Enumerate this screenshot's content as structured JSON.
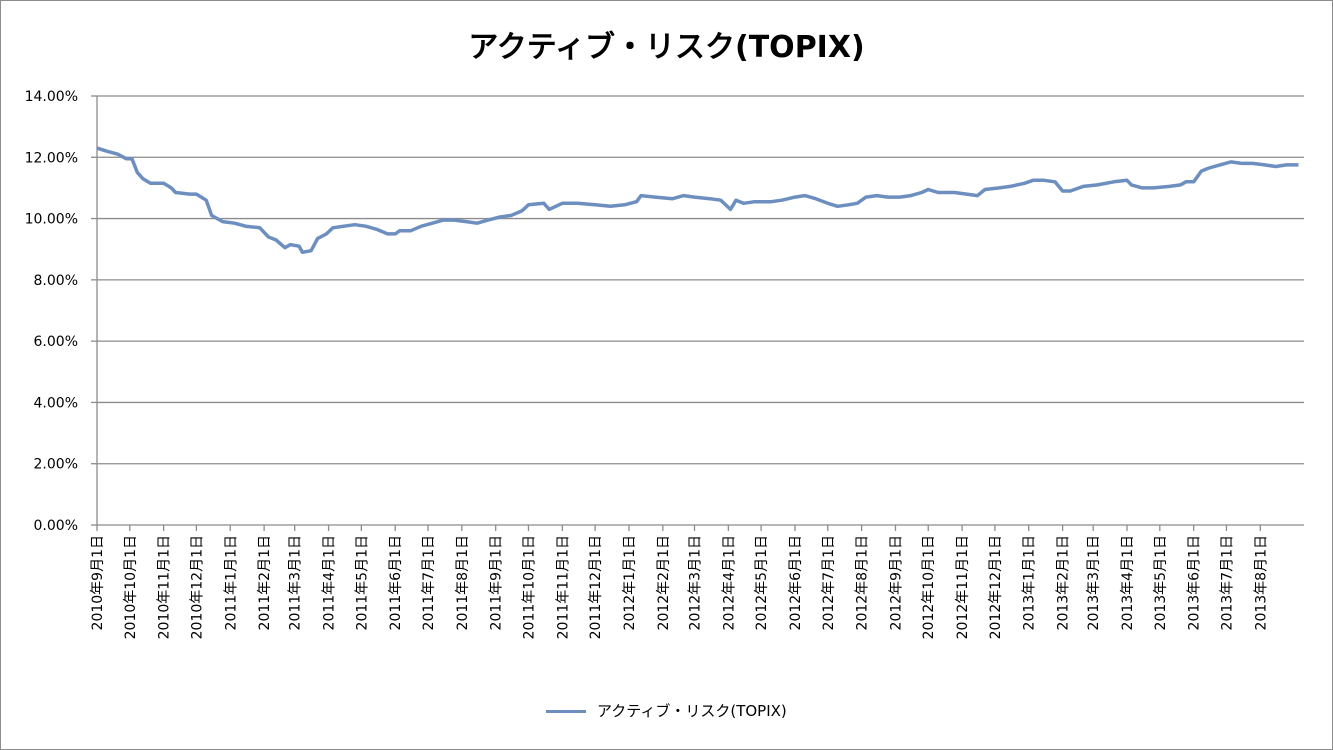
{
  "chart_data": {
    "type": "line",
    "title": "アクティブ・リスク(TOPIX)",
    "xlabel": "",
    "ylabel": "",
    "ylim": [
      0,
      0.14
    ],
    "y_ticks": [
      "0.00%",
      "2.00%",
      "4.00%",
      "6.00%",
      "8.00%",
      "10.00%",
      "12.00%",
      "14.00%"
    ],
    "x_ticks": [
      "2010年9月1日",
      "2010年10月1日",
      "2010年11月1日",
      "2010年12月1日",
      "2011年1月1日",
      "2011年2月1日",
      "2011年3月1日",
      "2011年4月1日",
      "2011年5月1日",
      "2011年6月1日",
      "2011年7月1日",
      "2011年8月1日",
      "2011年9月1日",
      "2011年10月1日",
      "2011年11月1日",
      "2011年12月1日",
      "2012年1月1日",
      "2012年2月1日",
      "2012年3月1日",
      "2012年4月1日",
      "2012年5月1日",
      "2012年6月1日",
      "2012年7月1日",
      "2012年8月1日",
      "2012年9月1日",
      "2012年10月1日",
      "2012年11月1日",
      "2012年12月1日",
      "2013年1月1日",
      "2013年2月1日",
      "2013年3月1日",
      "2013年4月1日",
      "2013年5月1日",
      "2013年6月1日",
      "2013年7月1日",
      "2013年8月1日"
    ],
    "grid": true,
    "legend_position": "bottom",
    "series": [
      {
        "name": "アクティブ・リスク(TOPIX)",
        "color": "#6d8fc0",
        "points": [
          [
            "2010-09-01",
            0.123
          ],
          [
            "2010-09-10",
            0.122
          ],
          [
            "2010-09-20",
            0.121
          ],
          [
            "2010-09-28",
            0.1195
          ],
          [
            "2010-10-03",
            0.1195
          ],
          [
            "2010-10-08",
            0.115
          ],
          [
            "2010-10-13",
            0.113
          ],
          [
            "2010-10-20",
            0.1115
          ],
          [
            "2010-11-01",
            0.1115
          ],
          [
            "2010-11-08",
            0.11
          ],
          [
            "2010-11-12",
            0.1085
          ],
          [
            "2010-11-25",
            0.108
          ],
          [
            "2010-12-01",
            0.108
          ],
          [
            "2010-12-10",
            0.106
          ],
          [
            "2010-12-15",
            0.101
          ],
          [
            "2010-12-25",
            0.099
          ],
          [
            "2011-01-05",
            0.0985
          ],
          [
            "2011-01-15",
            0.0975
          ],
          [
            "2011-01-28",
            0.097
          ],
          [
            "2011-02-05",
            0.094
          ],
          [
            "2011-02-12",
            0.093
          ],
          [
            "2011-02-20",
            0.0905
          ],
          [
            "2011-02-25",
            0.0915
          ],
          [
            "2011-03-05",
            0.091
          ],
          [
            "2011-03-08",
            0.089
          ],
          [
            "2011-03-16",
            0.0895
          ],
          [
            "2011-03-22",
            0.0935
          ],
          [
            "2011-03-30",
            0.095
          ],
          [
            "2011-04-05",
            0.097
          ],
          [
            "2011-04-15",
            0.0975
          ],
          [
            "2011-04-25",
            0.098
          ],
          [
            "2011-05-05",
            0.0975
          ],
          [
            "2011-05-15",
            0.0965
          ],
          [
            "2011-05-25",
            0.095
          ],
          [
            "2011-06-01",
            0.095
          ],
          [
            "2011-06-05",
            0.096
          ],
          [
            "2011-06-15",
            0.096
          ],
          [
            "2011-06-25",
            0.0975
          ],
          [
            "2011-07-05",
            0.0985
          ],
          [
            "2011-07-15",
            0.0995
          ],
          [
            "2011-07-25",
            0.0995
          ],
          [
            "2011-08-05",
            0.099
          ],
          [
            "2011-08-15",
            0.0985
          ],
          [
            "2011-08-25",
            0.0995
          ],
          [
            "2011-09-05",
            0.1005
          ],
          [
            "2011-09-15",
            0.101
          ],
          [
            "2011-09-25",
            0.1025
          ],
          [
            "2011-10-01",
            0.1045
          ],
          [
            "2011-10-15",
            0.105
          ],
          [
            "2011-10-20",
            0.103
          ],
          [
            "2011-11-01",
            0.105
          ],
          [
            "2011-11-15",
            0.105
          ],
          [
            "2011-12-01",
            0.1045
          ],
          [
            "2011-12-15",
            0.104
          ],
          [
            "2011-12-28",
            0.1045
          ],
          [
            "2012-01-08",
            0.1055
          ],
          [
            "2012-01-12",
            0.1075
          ],
          [
            "2012-01-25",
            0.107
          ],
          [
            "2012-02-10",
            0.1065
          ],
          [
            "2012-02-20",
            0.1075
          ],
          [
            "2012-03-01",
            0.107
          ],
          [
            "2012-03-15",
            0.1065
          ],
          [
            "2012-03-25",
            0.106
          ],
          [
            "2012-04-03",
            0.103
          ],
          [
            "2012-04-08",
            0.106
          ],
          [
            "2012-04-15",
            0.105
          ],
          [
            "2012-04-25",
            0.1055
          ],
          [
            "2012-05-10",
            0.1055
          ],
          [
            "2012-05-20",
            0.106
          ],
          [
            "2012-06-01",
            0.107
          ],
          [
            "2012-06-10",
            0.1075
          ],
          [
            "2012-06-20",
            0.1065
          ],
          [
            "2012-07-01",
            0.105
          ],
          [
            "2012-07-10",
            0.104
          ],
          [
            "2012-07-20",
            0.1045
          ],
          [
            "2012-07-28",
            0.105
          ],
          [
            "2012-08-05",
            0.107
          ],
          [
            "2012-08-15",
            0.1075
          ],
          [
            "2012-08-25",
            0.107
          ],
          [
            "2012-09-05",
            0.107
          ],
          [
            "2012-09-15",
            0.1075
          ],
          [
            "2012-09-25",
            0.1085
          ],
          [
            "2012-10-01",
            0.1095
          ],
          [
            "2012-10-10",
            0.1085
          ],
          [
            "2012-10-25",
            0.1085
          ],
          [
            "2012-11-05",
            0.108
          ],
          [
            "2012-11-15",
            0.1075
          ],
          [
            "2012-11-22",
            0.1095
          ],
          [
            "2012-12-05",
            0.11
          ],
          [
            "2012-12-15",
            0.1105
          ],
          [
            "2012-12-28",
            0.1115
          ],
          [
            "2013-01-05",
            0.1125
          ],
          [
            "2013-01-15",
            0.1125
          ],
          [
            "2013-01-25",
            0.112
          ],
          [
            "2013-02-01",
            0.109
          ],
          [
            "2013-02-08",
            0.109
          ],
          [
            "2013-02-20",
            0.1105
          ],
          [
            "2013-03-05",
            0.111
          ],
          [
            "2013-03-20",
            0.112
          ],
          [
            "2013-04-01",
            0.1125
          ],
          [
            "2013-04-05",
            0.111
          ],
          [
            "2013-04-15",
            0.11
          ],
          [
            "2013-04-25",
            0.11
          ],
          [
            "2013-05-10",
            0.1105
          ],
          [
            "2013-05-20",
            0.111
          ],
          [
            "2013-05-25",
            0.112
          ],
          [
            "2013-06-01",
            0.112
          ],
          [
            "2013-06-08",
            0.1155
          ],
          [
            "2013-06-15",
            0.1165
          ],
          [
            "2013-06-25",
            0.1175
          ],
          [
            "2013-07-05",
            0.1185
          ],
          [
            "2013-07-15",
            0.118
          ],
          [
            "2013-07-25",
            0.118
          ],
          [
            "2013-08-05",
            0.1175
          ],
          [
            "2013-08-15",
            0.117
          ],
          [
            "2013-08-25",
            0.1175
          ],
          [
            "2013-09-05",
            0.1175
          ]
        ]
      }
    ]
  }
}
